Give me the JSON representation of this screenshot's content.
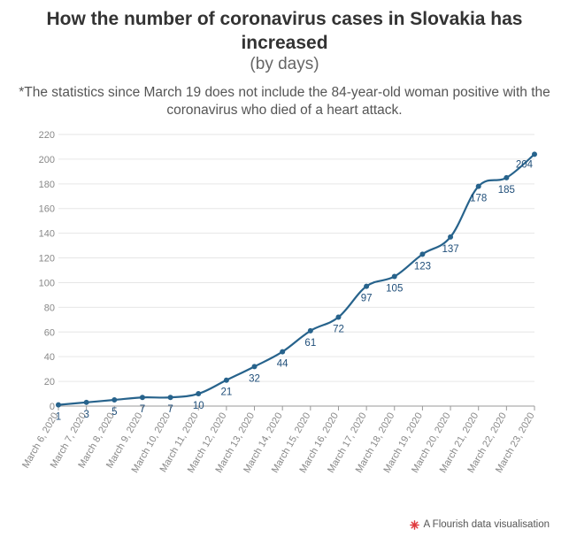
{
  "title": "How the number of coronavirus cases in Slovakia has increased",
  "subtitle": "(by days)",
  "note": "*The statistics since March 19 does not include the 84-year-old woman positive with the coronavirus who died of a heart attack.",
  "footer": {
    "text": "A Flourish data visualisation",
    "icon": "flourish-star-icon"
  },
  "colors": {
    "line": "#27638c",
    "label": "#1f4e79",
    "grid": "#e6e6e6",
    "axis_text": "#888888",
    "brand": "#e03a3e"
  },
  "chart_data": {
    "type": "line",
    "title": "How the number of coronavirus cases in Slovakia has increased",
    "subtitle": "(by days)",
    "xlabel": "",
    "ylabel": "",
    "ylim": [
      0,
      220
    ],
    "yticks": [
      0,
      20,
      40,
      60,
      80,
      100,
      120,
      140,
      160,
      180,
      200,
      220
    ],
    "grid": true,
    "legend": "none",
    "categories": [
      "March 6, 2020",
      "March 7, 2020",
      "March 8, 2020",
      "March 9, 2020",
      "March 10, 2020",
      "March 11, 2020",
      "March 12, 2020",
      "March 13, 2020",
      "March 14, 2020",
      "March 15, 2020",
      "March 16, 2020",
      "March 17, 2020",
      "March 18, 2020",
      "March 19, 2020",
      "March 20, 2020",
      "March 21, 2020",
      "March 22, 2020",
      "March 23, 2020"
    ],
    "values": [
      1,
      3,
      5,
      7,
      7,
      10,
      21,
      32,
      44,
      61,
      72,
      97,
      105,
      123,
      137,
      178,
      185,
      204
    ]
  }
}
